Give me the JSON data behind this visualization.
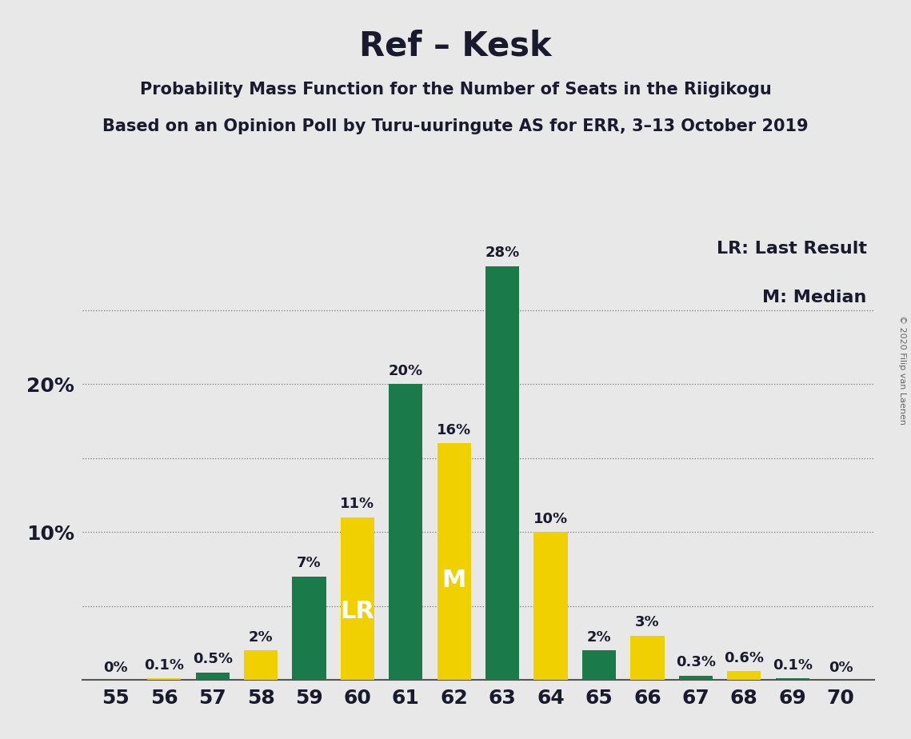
{
  "title": "Ref – Kesk",
  "subtitle1": "Probability Mass Function for the Number of Seats in the Riigikogu",
  "subtitle2": "Based on an Opinion Poll by Turu-uuringute AS for ERR, 3–13 October 2019",
  "copyright": "© 2020 Filip van Laenen",
  "legend_lr": "LR: Last Result",
  "legend_m": "M: Median",
  "seats": [
    55,
    56,
    57,
    58,
    59,
    60,
    61,
    62,
    63,
    64,
    65,
    66,
    67,
    68,
    69,
    70
  ],
  "green_values": [
    0.0,
    0.0,
    0.5,
    0.0,
    7.0,
    0.0,
    20.0,
    0.0,
    28.0,
    0.0,
    2.0,
    0.0,
    0.3,
    0.0,
    0.1,
    0.0
  ],
  "yellow_values": [
    0.0,
    0.1,
    0.0,
    2.0,
    0.0,
    11.0,
    0.0,
    16.0,
    0.0,
    10.0,
    0.0,
    3.0,
    0.0,
    0.6,
    0.0,
    0.0
  ],
  "green_color": "#1a7a4a",
  "yellow_color": "#f0d000",
  "background_color": "#e8e8e8",
  "lr_seat": 60,
  "m_seat": 62,
  "bar_labels": {
    "55": "0%",
    "56": "0.1%",
    "57": "0.5%",
    "58": "2%",
    "59": "7%",
    "60": "11%",
    "61": "20%",
    "62": "16%",
    "63": "28%",
    "64": "10%",
    "65": "2%",
    "66": "3%",
    "67": "0.3%",
    "68": "0.6%",
    "69": "0.1%",
    "70": "0%"
  },
  "ylim": [
    0,
    30
  ],
  "grid_y_values": [
    5,
    10,
    15,
    20,
    25
  ],
  "title_fontsize": 30,
  "subtitle_fontsize": 15,
  "tick_fontsize": 18,
  "legend_fontsize": 16,
  "bar_label_fontsize": 13,
  "inbar_label_fontsize": 22,
  "ytick_positions": [
    10,
    20
  ],
  "ytick_labels": [
    "10%",
    "20%"
  ]
}
